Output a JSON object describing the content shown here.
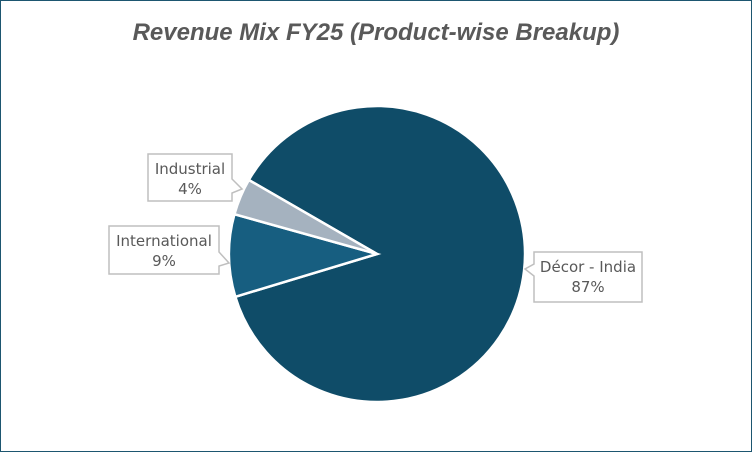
{
  "chart_data": {
    "type": "pie",
    "title": "Revenue Mix FY25 (Product-wise Breakup)",
    "categories": [
      "Décor - India",
      "International",
      "Industrial"
    ],
    "values": [
      87,
      9,
      4
    ],
    "value_labels": [
      "87%",
      "9%",
      "4%"
    ],
    "colors": [
      "#0f4c68",
      "#175e80",
      "#a5b2bf"
    ],
    "first_slice_angle_deg": 300,
    "legend": "none",
    "data_labels": "callouts with category name and percentage"
  }
}
